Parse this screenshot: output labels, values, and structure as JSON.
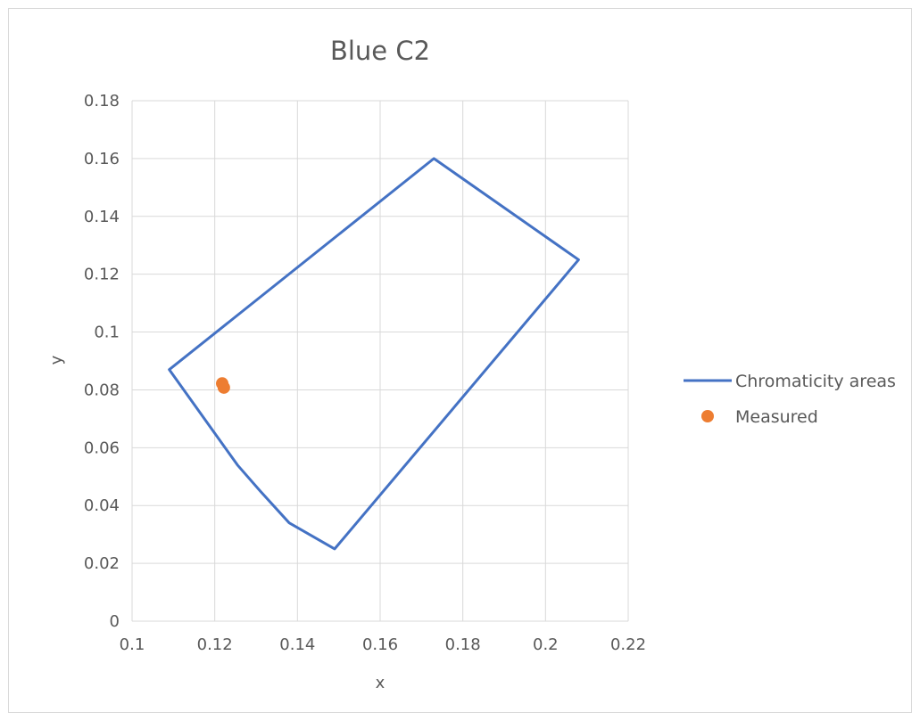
{
  "chart_data": {
    "type": "scatter",
    "title": "Blue C2",
    "xlabel": "x",
    "ylabel": "y",
    "xlim": [
      0.1,
      0.22
    ],
    "ylim": [
      0,
      0.18
    ],
    "xticks": [
      0.1,
      0.12,
      0.14,
      0.16,
      0.18,
      0.2,
      0.22
    ],
    "xtick_labels": [
      "0.1",
      "0.12",
      "0.14",
      "0.16",
      "0.18",
      "0.2",
      "0.22"
    ],
    "yticks": [
      0,
      0.02,
      0.04,
      0.06,
      0.08,
      0.1,
      0.12,
      0.14,
      0.16,
      0.18
    ],
    "ytick_labels": [
      "0",
      "0.02",
      "0.04",
      "0.06",
      "0.08",
      "0.1",
      "0.12",
      "0.14",
      "0.16",
      "0.18"
    ],
    "grid": true,
    "legend_position": "right",
    "series": [
      {
        "name": "Chromaticity areas",
        "kind": "line",
        "color": "#4472C4",
        "points": [
          [
            0.109,
            0.087
          ],
          [
            0.173,
            0.16
          ],
          [
            0.208,
            0.125
          ],
          [
            0.149,
            0.025
          ],
          [
            0.138,
            0.034
          ],
          [
            0.131,
            0.045
          ],
          [
            0.1255,
            0.054
          ],
          [
            0.121,
            0.063
          ],
          [
            0.109,
            0.087
          ]
        ]
      },
      {
        "name": "Measured",
        "kind": "scatter",
        "color": "#ED7D31",
        "points": [
          [
            0.1218,
            0.0822
          ],
          [
            0.1222,
            0.0808
          ]
        ]
      }
    ]
  }
}
